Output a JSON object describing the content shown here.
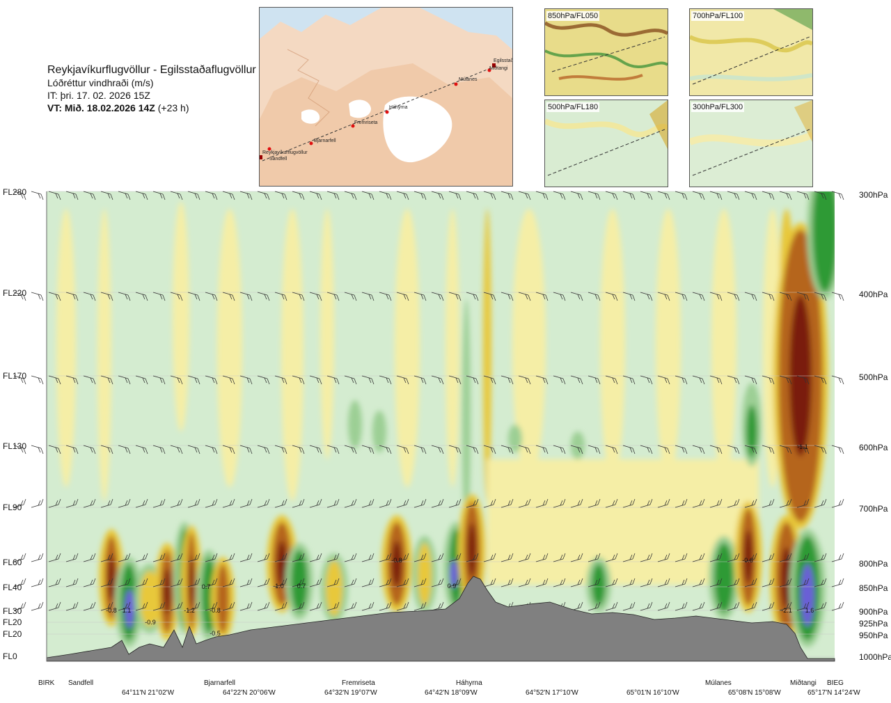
{
  "header": {
    "route": "Reykjavíkurflugvöllur - Egilsstaðaflugvöllur",
    "variable": "Lóðréttur vindhraði (m/s)",
    "issued": "IT: þri. 17. 02. 2026 15Z",
    "valid_bold": "VT: Mið. 18.02.2026 14Z",
    "valid_lead": "(+23 h)"
  },
  "overview_map": {
    "waypoints": [
      "Reykjavíkurflugvöllur",
      "Sandfell",
      "Bjarnarfell",
      "Fremriseta",
      "Háhyrna",
      "Múlanes",
      "Miðtangi",
      "Egilsstaðir"
    ]
  },
  "mini_maps": [
    {
      "label": "850hPa/FL050"
    },
    {
      "label": "700hPa/FL100"
    },
    {
      "label": "500hPa/FL180"
    },
    {
      "label": "300hPa/FL300"
    }
  ],
  "chart_data": {
    "type": "heatmap",
    "title": "Lóðréttur vindhraði (m/s)",
    "y_left_ticks": [
      "FL280",
      "FL220",
      "FL170",
      "FL130",
      "FL90",
      "FL60",
      "FL40",
      "FL30",
      "FL20",
      "FL20",
      "FL0"
    ],
    "y_right_ticks": [
      "300hPa",
      "400hPa",
      "500hPa",
      "600hPa",
      "700hPa",
      "800hPa",
      "850hPa",
      "900hPa",
      "925hPa",
      "950hPa",
      "1000hPa"
    ],
    "x_places": [
      "BIRK",
      "Sandfell",
      "Bjarnarfell",
      "Fremriseta",
      "Háhyrna",
      "Múlanes",
      "Miðtangi",
      "BIEG"
    ],
    "x_coords": [
      "64°11'N 21°02'W",
      "64°22'N 20°06'W",
      "64°32'N 19°07'W",
      "64°42'N 18°09'W",
      "64°52'N 17°10'W",
      "65°01'N 16°10'W",
      "65°08'N 15°08'W",
      "65°17'N 14°24'W"
    ],
    "annotations": [
      "-0.8",
      "1.1",
      "-0.9",
      "-1.2",
      "-0.8",
      "0.7",
      "-0.5",
      "-1.0",
      "0.7",
      "-0.8",
      "0.9",
      "-0.6",
      "-1.1",
      "-2.1",
      "1.6"
    ],
    "colors": {
      "strong_down": "#7a1a0a",
      "down": "#b5651d",
      "weak_down": "#e8c83a",
      "neutral_down": "#f5eea6",
      "neutral_up": "#d4ecd0",
      "weak_up": "#9ccf94",
      "up": "#2e9a34",
      "strong_up": "#6b5fd6",
      "terrain": "#808080"
    }
  }
}
